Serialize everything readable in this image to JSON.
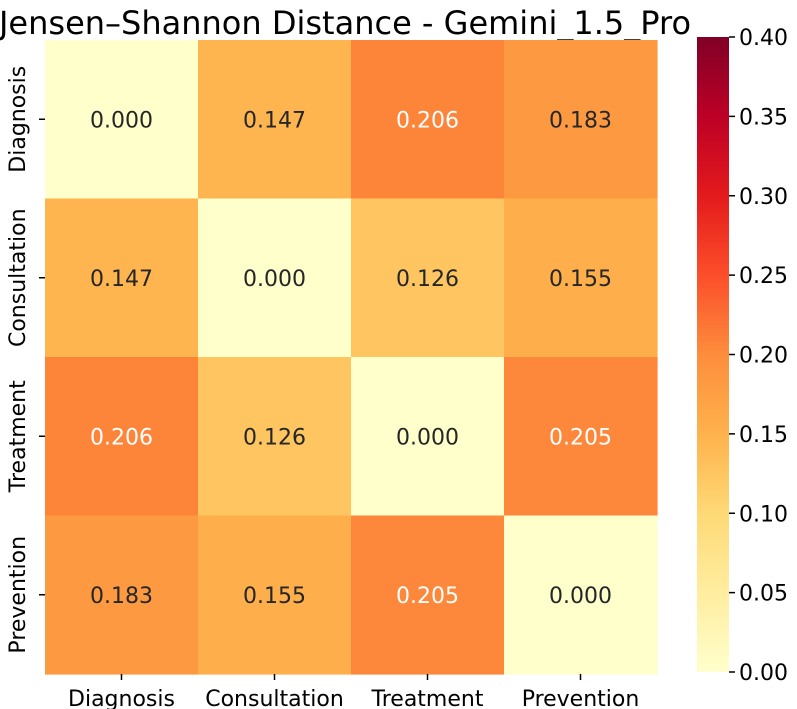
{
  "chart_data": {
    "type": "heatmap",
    "title": "Jensen–Shannon Distance - Gemini_1.5_Pro",
    "row_labels": [
      "Diagnosis",
      "Consultation",
      "Treatment",
      "Prevention"
    ],
    "col_labels": [
      "Diagnosis",
      "Consultation",
      "Treatment",
      "Prevention"
    ],
    "values": [
      [
        0.0,
        0.147,
        0.206,
        0.183
      ],
      [
        0.147,
        0.0,
        0.126,
        0.155
      ],
      [
        0.206,
        0.126,
        0.0,
        0.205
      ],
      [
        0.183,
        0.155,
        0.205,
        0.0
      ]
    ],
    "value_format_decimals": 3,
    "colormap": "YlOrRd",
    "vmin": 0.0,
    "vmax": 0.4,
    "colorbar_ticks": [
      "0.00",
      "0.05",
      "0.10",
      "0.15",
      "0.20",
      "0.25",
      "0.30",
      "0.35",
      "0.40"
    ],
    "colorbar_tick_values": [
      0.0,
      0.05,
      0.1,
      0.15,
      0.2,
      0.25,
      0.3,
      0.35,
      0.4
    ],
    "annotation_light_color": "#ffffff",
    "annotation_dark_color": "#262626"
  }
}
